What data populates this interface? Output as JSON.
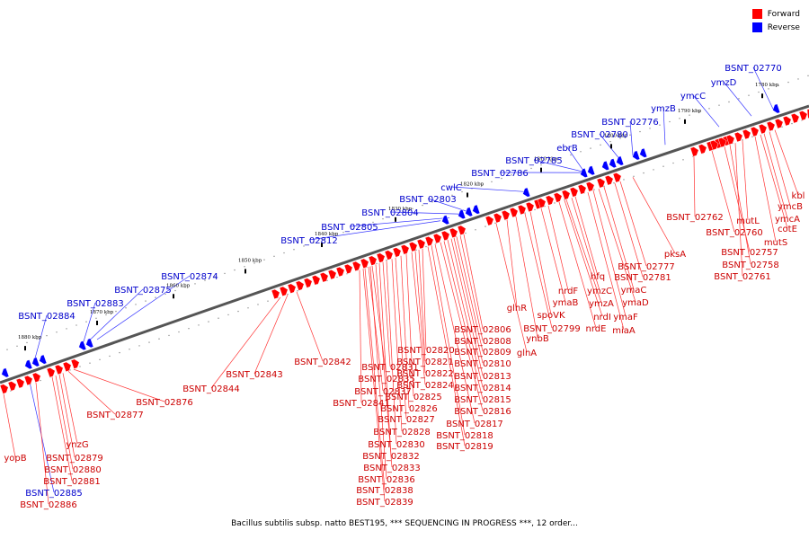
{
  "colors": {
    "forward": "#ff0000",
    "reverse": "#0000ff",
    "line_forward": "#ff3333",
    "line_reverse": "#3333ff",
    "backbone": "#555555"
  },
  "legend": {
    "forward_label": "Forward",
    "reverse_label": "Reverse"
  },
  "caption": "Bacillus subtilis subsp. natto BEST195, *** SEQUENCING IN PROGRESS ***, 12 order...",
  "kbp_ticks": [
    "1780 kbp",
    "1790 kbp",
    "1800 kbp",
    "1810 kbp",
    "1820 kbp",
    "1830 kbp",
    "1840 kbp",
    "1850 kbp",
    "1860 kbp",
    "1870 kbp",
    "1880 kbp"
  ],
  "reverse_labels": [
    "BSNT_02770",
    "ymzD",
    "ymcC",
    "ymzB",
    "BSNT_02776",
    "BSNT_02780",
    "ebrB",
    "BSNT_02785",
    "BSNT_02786",
    "cwlC",
    "BSNT_02803",
    "BSNT_02804",
    "BSNT_02805",
    "BSNT_02812",
    "BSNT_02874",
    "BSNT_02875",
    "BSNT_02883",
    "BSNT_02884",
    "BSNT_02885"
  ],
  "forward_labels": [
    "kbl",
    "ymcB",
    "ymcA",
    "cotE",
    "mutS",
    "mutL",
    "BSNT_02762",
    "BSNT_02760",
    "BSNT_02757",
    "BSNT_02758",
    "BSNT_02761",
    "pksA",
    "BSNT_02777",
    "BSNT_02781",
    "ymaC",
    "ymaD",
    "ymaF",
    "miaA",
    "hfq",
    "ymzC",
    "ymzA",
    "nrdI",
    "nrdE",
    "nrdF",
    "ymaB",
    "spoVK",
    "BSNT_02799",
    "ynbB",
    "glnR",
    "glnA",
    "BSNT_02806",
    "BSNT_02808",
    "BSNT_02809",
    "BSNT_02810",
    "BSNT_02813",
    "BSNT_02814",
    "BSNT_02815",
    "BSNT_02816",
    "BSNT_02817",
    "BSNT_02818",
    "BSNT_02819",
    "BSNT_02820",
    "BSNT_02821",
    "BSNT_02822",
    "BSNT_02824",
    "BSNT_02825",
    "BSNT_02826",
    "BSNT_02827",
    "BSNT_02828",
    "BSNT_02830",
    "BSNT_02831",
    "BSNT_02832",
    "BSNT_02833",
    "BSNT_02835",
    "BSNT_02836",
    "BSNT_02837",
    "BSNT_02838",
    "BSNT_02839",
    "BSNT_02841",
    "BSNT_02842",
    "BSNT_02843",
    "BSNT_02844",
    "BSNT_02876",
    "BSNT_02877",
    "ynzG",
    "BSNT_02879",
    "BSNT_02880",
    "BSNT_02881",
    "yopB",
    "BSNT_02886"
  ]
}
